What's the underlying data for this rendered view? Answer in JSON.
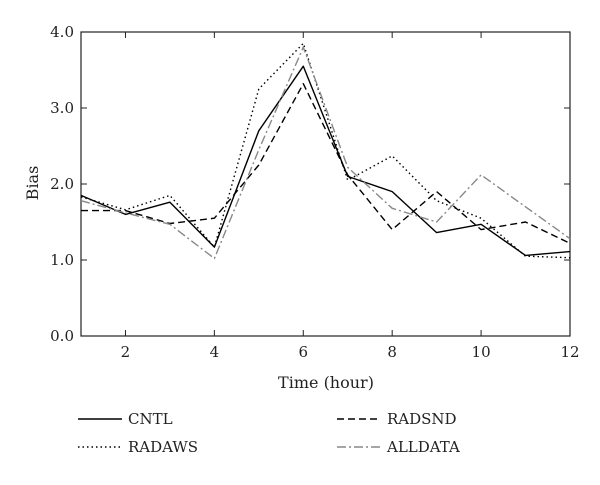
{
  "chart_data": {
    "type": "line",
    "xlabel": "Time (hour)",
    "ylabel": "Bias",
    "xlim": [
      1,
      12
    ],
    "ylim": [
      0,
      4
    ],
    "xticks": [
      2,
      4,
      6,
      8,
      10,
      12
    ],
    "xtick_labels": [
      "2",
      "4",
      "6",
      "8",
      "10",
      "12"
    ],
    "yticks": [
      0,
      1,
      2,
      3,
      4
    ],
    "ytick_labels": [
      "0.0",
      "1.0",
      "2.0",
      "3.0",
      "4.0"
    ],
    "grid": false,
    "legend_position": "bottom",
    "x": [
      1,
      2,
      3,
      4,
      5,
      6,
      7,
      8,
      9,
      10,
      11,
      12
    ],
    "series": [
      {
        "name": "CNTL",
        "style": "solid",
        "color": "#000000",
        "values": [
          1.85,
          1.6,
          1.76,
          1.17,
          2.7,
          3.55,
          2.1,
          1.9,
          1.36,
          1.47,
          1.06,
          1.11
        ]
      },
      {
        "name": "RADSND",
        "style": "dashed",
        "color": "#000000",
        "values": [
          1.65,
          1.65,
          1.48,
          1.55,
          2.25,
          3.32,
          2.12,
          1.4,
          1.9,
          1.4,
          1.5,
          1.22
        ]
      },
      {
        "name": "RADAWS",
        "style": "dotted",
        "color": "#000000",
        "values": [
          1.83,
          1.66,
          1.85,
          1.17,
          3.25,
          3.85,
          2.05,
          2.37,
          1.78,
          1.55,
          1.05,
          1.03
        ]
      },
      {
        "name": "ALLDATA",
        "style": "dashdot",
        "color": "#888888",
        "values": [
          1.78,
          1.62,
          1.47,
          1.02,
          2.45,
          3.8,
          2.22,
          1.68,
          1.5,
          2.12,
          1.7,
          1.28
        ]
      }
    ]
  }
}
